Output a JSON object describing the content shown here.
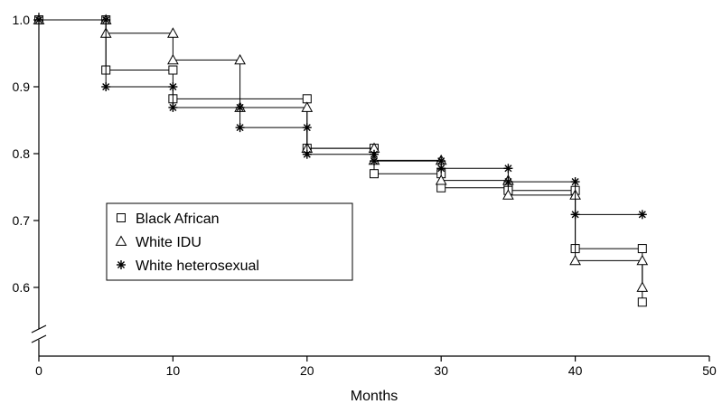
{
  "chart_data": {
    "type": "line",
    "subtype": "step survival curve",
    "title": "",
    "xlabel": "Months",
    "ylabel": "",
    "xlim": [
      0,
      50
    ],
    "ylim": [
      0.55,
      1.0
    ],
    "y_axis_break": true,
    "xticks": [
      0,
      10,
      20,
      30,
      40,
      50
    ],
    "yticks": [
      0.6,
      0.7,
      0.8,
      0.9,
      1.0
    ],
    "xtick_labels": [
      "0",
      "10",
      "20",
      "30",
      "40",
      "50"
    ],
    "ytick_labels": [
      "0.6",
      "0.7",
      "0.8",
      "0.9",
      "1.0"
    ],
    "grid": false,
    "legend_position": "center-left",
    "series": [
      {
        "name": "Black African",
        "marker": "open-square",
        "color": "#000000",
        "steps": [
          [
            0,
            1.0
          ],
          [
            5,
            0.925
          ],
          [
            10,
            0.882
          ],
          [
            20,
            0.808
          ],
          [
            25,
            0.77
          ],
          [
            30,
            0.749
          ],
          [
            35,
            0.745
          ],
          [
            40,
            0.658
          ],
          [
            45,
            0.578
          ]
        ]
      },
      {
        "name": "White IDU",
        "marker": "open-triangle",
        "color": "#000000",
        "steps": [
          [
            0,
            1.0
          ],
          [
            5,
            0.98
          ],
          [
            10,
            0.94
          ],
          [
            15,
            0.869
          ],
          [
            20,
            0.808
          ],
          [
            25,
            0.79
          ],
          [
            30,
            0.76
          ],
          [
            35,
            0.738
          ],
          [
            40,
            0.64
          ],
          [
            45,
            0.6
          ]
        ]
      },
      {
        "name": "White heterosexual",
        "marker": "asterisk",
        "color": "#000000",
        "steps": [
          [
            0,
            1.0
          ],
          [
            5,
            0.9
          ],
          [
            10,
            0.869
          ],
          [
            15,
            0.839
          ],
          [
            20,
            0.799
          ],
          [
            25,
            0.789
          ],
          [
            30,
            0.778
          ],
          [
            35,
            0.758
          ],
          [
            40,
            0.709
          ],
          [
            45,
            0.709
          ]
        ]
      }
    ]
  }
}
